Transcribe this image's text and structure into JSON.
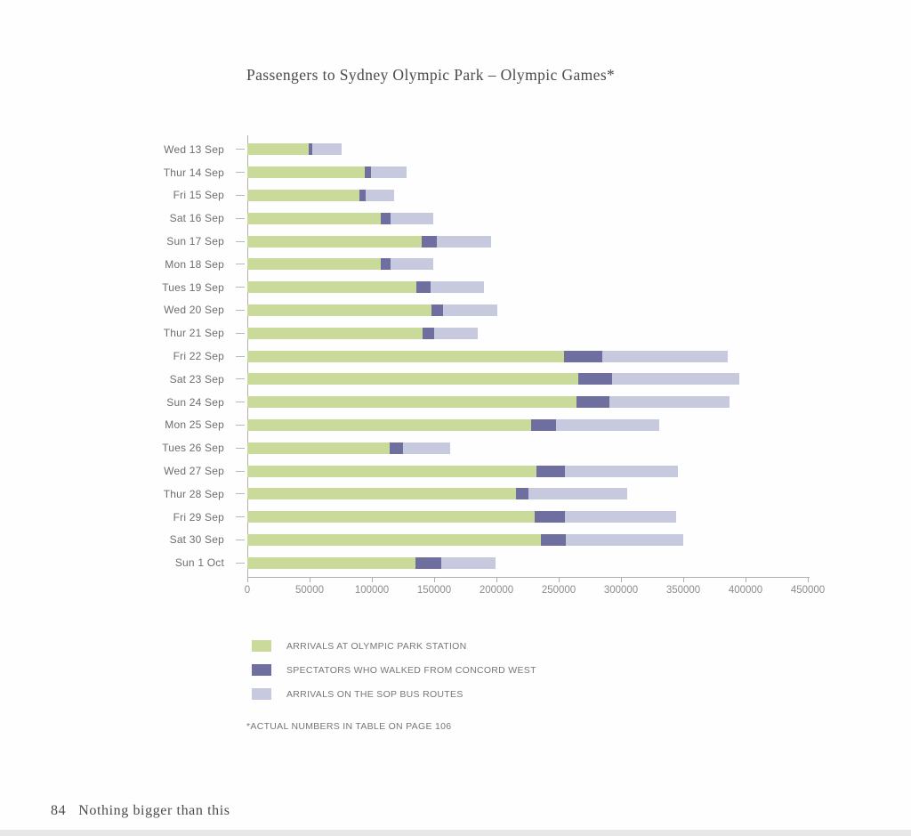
{
  "page": {
    "title": "Passengers to Sydney Olympic Park – Olympic Games*",
    "footnote": "*ACTUAL NUMBERS IN TABLE ON PAGE 106",
    "footer": {
      "page_number": "84",
      "book_title": "Nothing bigger than this"
    }
  },
  "colors": {
    "station": "#c9da9b",
    "walked": "#6e6f9e",
    "bus": "#c7cade",
    "axis": "#b0b0b0",
    "label_gray": "#6e6e6e"
  },
  "legend": [
    {
      "label": "ARRIVALS AT OLYMPIC PARK STATION",
      "color": "#c9da9b"
    },
    {
      "label": "SPECTATORS WHO WALKED FROM CONCORD WEST",
      "color": "#6e6f9e"
    },
    {
      "label": "ARRIVALS ON THE SOP BUS ROUTES",
      "color": "#c7cade"
    }
  ],
  "chart_data": {
    "type": "bar",
    "orientation": "horizontal",
    "stacked": true,
    "grid": false,
    "legend_position": "bottom-left",
    "title": "Passengers to Sydney Olympic Park – Olympic Games*",
    "xlabel": "",
    "ylabel": "",
    "xlim": [
      0,
      450000
    ],
    "x_tick_labels": [
      "0",
      "50000",
      "100000",
      "150000",
      "200000",
      "250000",
      "300000",
      "350000",
      "400000",
      "450000"
    ],
    "categories": [
      "Wed 13 Sep",
      "Thur 14 Sep",
      "Fri 15 Sep",
      "Sat 16 Sep",
      "Sun 17 Sep",
      "Mon 18 Sep",
      "Tues 19 Sep",
      "Wed 20 Sep",
      "Thur 21 Sep",
      "Fri 22 Sep",
      "Sat 23 Sep",
      "Sun 24 Sep",
      "Mon 25 Sep",
      "Tues 26 Sep",
      "Wed 27 Sep",
      "Thur 28 Sep",
      "Fri 29 Sep",
      "Sat 30 Sep",
      "Sun 1 Oct"
    ],
    "series": [
      {
        "name": "ARRIVALS AT OLYMPIC PARK STATION",
        "color": "#c9da9b",
        "values": [
          49000,
          94000,
          90000,
          107000,
          140000,
          107000,
          136000,
          148000,
          141000,
          254000,
          266000,
          264000,
          228000,
          114000,
          232000,
          216000,
          231000,
          236000,
          135000
        ]
      },
      {
        "name": "SPECTATORS WHO WALKED FROM CONCORD WEST",
        "color": "#6e6f9e",
        "values": [
          3000,
          5000,
          5000,
          8000,
          12000,
          8000,
          11000,
          9000,
          9000,
          31000,
          27000,
          27000,
          20000,
          11000,
          23000,
          10000,
          24000,
          20000,
          21000
        ]
      },
      {
        "name": "ARRIVALS ON THE SOP BUS ROUTES",
        "color": "#c7cade",
        "values": [
          24000,
          29000,
          23000,
          34000,
          44000,
          34000,
          43000,
          44000,
          35000,
          101000,
          102000,
          96000,
          83000,
          38000,
          91000,
          79000,
          89000,
          94000,
          43000
        ]
      }
    ]
  }
}
